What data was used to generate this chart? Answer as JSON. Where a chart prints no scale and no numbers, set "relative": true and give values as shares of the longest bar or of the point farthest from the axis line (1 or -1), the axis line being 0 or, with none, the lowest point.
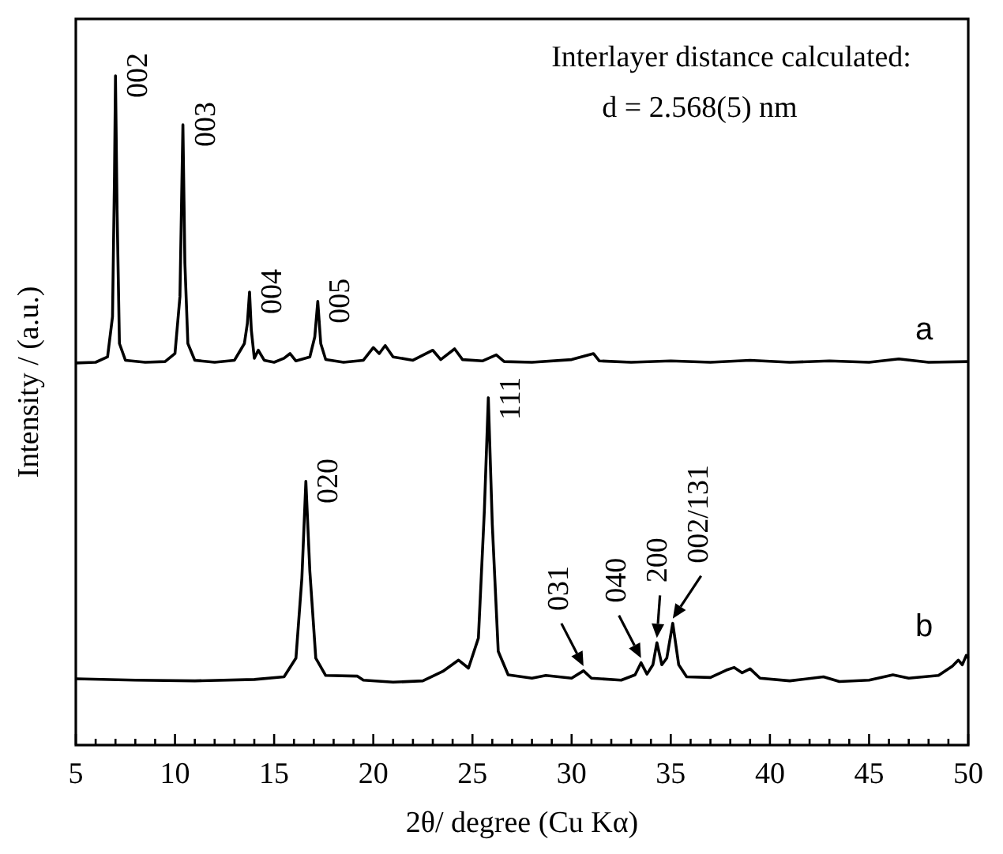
{
  "chart_data": {
    "type": "line",
    "relative": true,
    "xlabel": "2θ/ degree (Cu Kα)",
    "ylabel": "Intensity / (a.u.)",
    "xlim": [
      5,
      50
    ],
    "xticks": [
      5,
      {
        "value": 6,
        "label": null
      },
      {
        "value": 7,
        "label": null
      },
      {
        "value": 8,
        "label": null
      },
      {
        "value": 9,
        "label": null
      },
      10,
      {
        "value": 11,
        "label": null
      },
      {
        "value": 12,
        "label": null
      },
      {
        "value": 13,
        "label": null
      },
      {
        "value": 14,
        "label": null
      },
      15,
      {
        "value": 16,
        "label": null
      },
      {
        "value": 17,
        "label": null
      },
      {
        "value": 18,
        "label": null
      },
      {
        "value": 19,
        "label": null
      },
      20,
      {
        "value": 21,
        "label": null
      },
      {
        "value": 22,
        "label": null
      },
      {
        "value": 23,
        "label": null
      },
      {
        "value": 24,
        "label": null
      },
      25,
      {
        "value": 26,
        "label": null
      },
      {
        "value": 27,
        "label": null
      },
      {
        "value": 28,
        "label": null
      },
      {
        "value": 29,
        "label": null
      },
      30,
      {
        "value": 31,
        "label": null
      },
      {
        "value": 32,
        "label": null
      },
      {
        "value": 33,
        "label": null
      },
      {
        "value": 34,
        "label": null
      },
      35,
      {
        "value": 36,
        "label": null
      },
      {
        "value": 37,
        "label": null
      },
      {
        "value": 38,
        "label": null
      },
      {
        "value": 39,
        "label": null
      },
      40,
      {
        "value": 41,
        "label": null
      },
      {
        "value": 42,
        "label": null
      },
      {
        "value": 43,
        "label": null
      },
      {
        "value": 44,
        "label": null
      },
      45,
      {
        "value": 46,
        "label": null
      },
      {
        "value": 47,
        "label": null
      },
      {
        "value": 48,
        "label": null
      },
      {
        "value": 49,
        "label": null
      },
      50
    ],
    "series": [
      {
        "name": "a",
        "color": "#000000",
        "x": [
          5,
          6,
          6.6,
          6.85,
          6.95,
          7.0,
          7.08,
          7.2,
          7.5,
          8.5,
          9.5,
          10.0,
          10.25,
          10.4,
          10.5,
          10.65,
          11,
          12,
          13,
          13.3,
          13.5,
          13.65,
          13.76,
          13.85,
          14.0,
          14.2,
          14.5,
          15.0,
          15.5,
          15.8,
          16.1,
          16.8,
          17.05,
          17.2,
          17.35,
          17.6,
          18.5,
          19.5,
          20.0,
          20.3,
          20.6,
          21,
          22,
          23,
          23.4,
          24.1,
          24.5,
          25.5,
          26.2,
          26.6,
          28,
          30,
          31.1,
          31.4,
          33,
          35,
          37,
          39,
          41,
          43,
          45,
          46.5,
          48,
          50
        ],
        "values": [
          0.571,
          0.572,
          0.58,
          0.64,
          0.85,
          1.0,
          0.8,
          0.6,
          0.575,
          0.572,
          0.573,
          0.585,
          0.67,
          0.927,
          0.72,
          0.6,
          0.575,
          0.572,
          0.575,
          0.59,
          0.6,
          0.63,
          0.677,
          0.62,
          0.578,
          0.59,
          0.575,
          0.572,
          0.578,
          0.585,
          0.574,
          0.58,
          0.61,
          0.663,
          0.6,
          0.576,
          0.572,
          0.575,
          0.594,
          0.585,
          0.597,
          0.58,
          0.575,
          0.59,
          0.576,
          0.592,
          0.576,
          0.574,
          0.583,
          0.573,
          0.572,
          0.576,
          0.585,
          0.574,
          0.572,
          0.574,
          0.572,
          0.575,
          0.572,
          0.574,
          0.572,
          0.577,
          0.572,
          0.573
        ]
      },
      {
        "name": "b",
        "color": "#000000",
        "x": [
          5,
          8,
          11,
          14,
          15.5,
          16.1,
          16.4,
          16.6,
          16.8,
          17.1,
          17.6,
          19.2,
          19.5,
          21,
          22.5,
          23.5,
          24.3,
          24.8,
          25.3,
          25.6,
          25.8,
          26.0,
          26.3,
          26.8,
          28,
          28.7,
          30,
          30.6,
          31.0,
          32.5,
          33.2,
          33.5,
          33.8,
          34.1,
          34.3,
          34.55,
          34.8,
          35.1,
          35.4,
          35.8,
          37,
          37.8,
          38.2,
          38.6,
          39.0,
          39.5,
          41,
          42.7,
          43.5,
          45,
          46.2,
          47,
          48.5,
          49.2,
          49.5,
          49.7,
          49.9,
          50
        ],
        "values": [
          0.099,
          0.097,
          0.096,
          0.098,
          0.102,
          0.13,
          0.25,
          0.394,
          0.26,
          0.13,
          0.104,
          0.103,
          0.097,
          0.094,
          0.096,
          0.11,
          0.127,
          0.115,
          0.16,
          0.35,
          0.519,
          0.33,
          0.14,
          0.105,
          0.1,
          0.104,
          0.1,
          0.111,
          0.1,
          0.097,
          0.105,
          0.123,
          0.106,
          0.12,
          0.153,
          0.12,
          0.13,
          0.182,
          0.12,
          0.102,
          0.101,
          0.112,
          0.116,
          0.108,
          0.114,
          0.1,
          0.096,
          0.102,
          0.095,
          0.097,
          0.105,
          0.1,
          0.104,
          0.118,
          0.127,
          0.12,
          0.134,
          0.13
        ]
      }
    ],
    "annotations": [
      "Interlayer distance calculated:",
      "d = 2.568(5) nm",
      {
        "text": "002",
        "x": 7.0,
        "y": 1.0
      },
      {
        "text": "003",
        "x": 10.4,
        "y": 0.927
      },
      {
        "text": "004",
        "x": 13.76,
        "y": 0.677
      },
      {
        "text": "005",
        "x": 17.2,
        "y": 0.663
      },
      {
        "text": "020",
        "x": 16.6,
        "y": 0.394
      },
      {
        "text": "111",
        "x": 25.8,
        "y": 0.519
      },
      {
        "text": "031",
        "x": 30.6,
        "y": 0.111
      },
      {
        "text": "040",
        "x": 33.5,
        "y": 0.123
      },
      {
        "text": "200",
        "x": 34.3,
        "y": 0.153
      },
      {
        "text": "002/131",
        "x": 35.1,
        "y": 0.182
      }
    ]
  }
}
